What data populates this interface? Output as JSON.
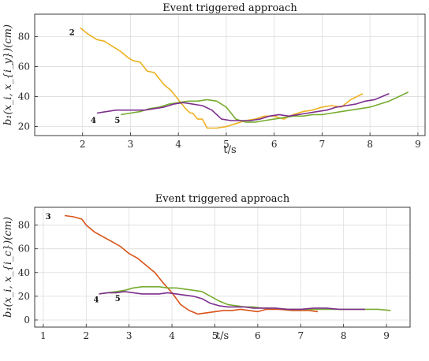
{
  "chart_data": [
    {
      "type": "line",
      "title": "Event triggered approach",
      "xlabel": "t/s",
      "ylabel": "b₁(x_i, x_{i_y})(cm)",
      "xlim": [
        1,
        9.15
      ],
      "ylim": [
        14,
        95
      ],
      "xticks": [
        "2",
        "3",
        "4",
        "5",
        "6",
        "7",
        "8",
        "9"
      ],
      "xtick_values": [
        2,
        3,
        4,
        5,
        6,
        7,
        8,
        9
      ],
      "yticks": [
        "20",
        "40",
        "60",
        "80"
      ],
      "ytick_values": [
        20,
        40,
        60,
        80
      ],
      "grid": true,
      "annotations": [
        {
          "text": "2",
          "x": 1.72,
          "y": 81
        },
        {
          "text": "4",
          "x": 2.17,
          "y": 22.5
        },
        {
          "text": "5",
          "x": 2.67,
          "y": 22.5
        }
      ],
      "series": [
        {
          "color": "#EDB120",
          "x": [
            1.95,
            2.1,
            2.3,
            2.45,
            2.55,
            2.7,
            2.8,
            2.95,
            3.05,
            3.2,
            3.35,
            3.5,
            3.7,
            3.85,
            4.0,
            4.15,
            4.25,
            4.3,
            4.4,
            4.5,
            4.6,
            4.8,
            5.0,
            5.2,
            5.4,
            5.6,
            5.8,
            6.0,
            6.2,
            6.4,
            6.6,
            6.8,
            7.0,
            7.2,
            7.4,
            7.6,
            7.85
          ],
          "y": [
            86,
            82,
            78,
            77,
            75,
            72,
            70,
            66,
            64,
            63,
            57,
            56,
            48,
            44,
            38,
            32,
            29,
            29,
            25,
            25,
            19,
            19,
            20,
            22,
            24,
            25,
            27,
            27,
            25,
            28,
            30,
            31,
            33,
            34,
            33,
            38,
            42
          ]
        },
        {
          "color": "#77AC30",
          "x": [
            2.8,
            3.0,
            3.2,
            3.4,
            3.6,
            3.8,
            4.0,
            4.2,
            4.4,
            4.6,
            4.8,
            5.0,
            5.2,
            5.4,
            5.6,
            5.8,
            6.0,
            6.2,
            6.4,
            6.6,
            6.8,
            7.0,
            7.2,
            7.4,
            7.6,
            7.8,
            8.0,
            8.2,
            8.4,
            8.6,
            8.8
          ],
          "y": [
            28,
            29,
            30,
            32,
            33,
            35,
            36,
            37,
            37,
            38,
            37,
            33,
            25,
            23,
            23,
            24,
            25,
            26,
            27,
            27,
            28,
            28,
            29,
            30,
            31,
            32,
            33,
            35,
            37,
            40,
            43
          ]
        },
        {
          "color": "#7E2F8E",
          "x": [
            2.3,
            2.5,
            2.7,
            2.9,
            3.1,
            3.3,
            3.5,
            3.7,
            3.9,
            4.1,
            4.3,
            4.5,
            4.7,
            4.9,
            5.1,
            5.3,
            5.5,
            5.7,
            5.9,
            6.1,
            6.3,
            6.5,
            6.7,
            6.9,
            7.1,
            7.3,
            7.5,
            7.7,
            7.9,
            8.1,
            8.4
          ],
          "y": [
            29,
            30,
            31,
            31,
            31,
            31,
            32,
            33,
            35,
            36,
            35,
            34,
            31,
            25,
            24,
            24,
            24,
            25,
            27,
            28,
            27,
            28,
            29,
            30,
            31,
            33,
            34,
            35,
            37,
            38,
            42
          ]
        }
      ]
    },
    {
      "type": "line",
      "title": "Event triggered approach",
      "xlabel": "t/s",
      "ylabel": "b₁(x_i, x_{i_c})(cm)",
      "xlim": [
        0.8,
        9.55
      ],
      "ylim": [
        -6,
        95
      ],
      "xticks": [
        "1",
        "2",
        "3",
        "4",
        "5",
        "6",
        "7",
        "8",
        "9"
      ],
      "xtick_values": [
        1,
        2,
        3,
        4,
        5,
        6,
        7,
        8,
        9
      ],
      "yticks": [
        "0",
        "20",
        "40",
        "60",
        "80"
      ],
      "ytick_values": [
        0,
        20,
        40,
        60,
        80
      ],
      "grid": true,
      "annotations": [
        {
          "text": "3",
          "x": 1.05,
          "y": 85
        },
        {
          "text": "4",
          "x": 2.17,
          "y": 15
        },
        {
          "text": "5",
          "x": 2.67,
          "y": 16
        }
      ],
      "series": [
        {
          "color": "#D95319",
          "x": [
            1.5,
            1.7,
            1.9,
            2.0,
            2.2,
            2.4,
            2.6,
            2.8,
            3.0,
            3.2,
            3.4,
            3.6,
            3.8,
            4.0,
            4.2,
            4.4,
            4.6,
            4.8,
            5.0,
            5.2,
            5.4,
            5.6,
            5.8,
            6.0,
            6.2,
            6.5,
            6.8,
            7.0,
            7.2,
            7.4
          ],
          "y": [
            88,
            87,
            85,
            80,
            74,
            70,
            66,
            62,
            56,
            52,
            46,
            40,
            31,
            23,
            13,
            8,
            5,
            6,
            7,
            8,
            8,
            9,
            8,
            7,
            9,
            9,
            8,
            8,
            8,
            7
          ]
        },
        {
          "color": "#77AC30",
          "x": [
            2.3,
            2.5,
            2.7,
            2.9,
            3.1,
            3.3,
            3.5,
            3.7,
            3.9,
            4.1,
            4.3,
            4.5,
            4.7,
            4.9,
            5.1,
            5.3,
            5.5,
            5.7,
            5.9,
            6.1,
            6.4,
            6.7,
            7.0,
            7.3,
            7.6,
            7.9,
            8.2,
            8.5,
            8.8,
            9.1
          ],
          "y": [
            22,
            23,
            24,
            25,
            27,
            28,
            28,
            28,
            27,
            27,
            26,
            25,
            24,
            20,
            16,
            13,
            12,
            11,
            11,
            10,
            10,
            9,
            9,
            9,
            9,
            9,
            9,
            9,
            9,
            8
          ]
        },
        {
          "color": "#7E2F8E",
          "x": [
            2.3,
            2.5,
            2.7,
            2.9,
            3.1,
            3.3,
            3.5,
            3.7,
            3.9,
            4.1,
            4.3,
            4.5,
            4.7,
            4.9,
            5.1,
            5.3,
            5.5,
            5.7,
            5.9,
            6.1,
            6.4,
            6.7,
            7.0,
            7.3,
            7.6,
            7.9,
            8.2,
            8.5
          ],
          "y": [
            22,
            23,
            23,
            24,
            23,
            22,
            22,
            22,
            23,
            22,
            21,
            20,
            18,
            14,
            12,
            11,
            11,
            11,
            10,
            10,
            10,
            9,
            9,
            10,
            10,
            9,
            9,
            9
          ]
        }
      ]
    }
  ]
}
